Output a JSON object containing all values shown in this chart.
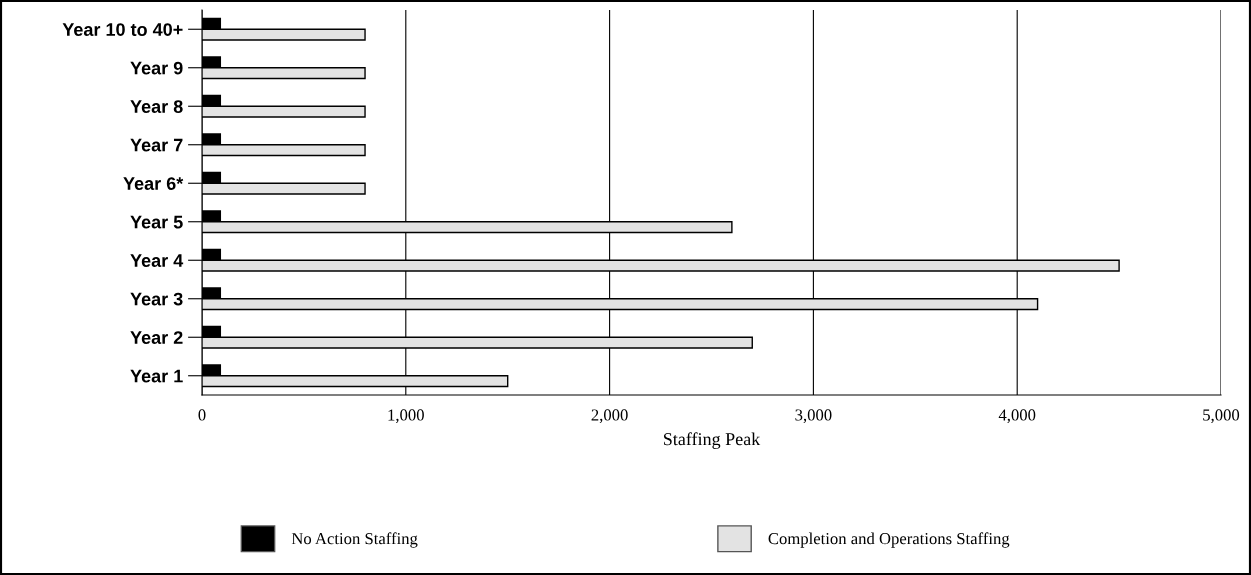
{
  "chart_data": {
    "type": "bar",
    "orientation": "horizontal",
    "xlabel": "Staffing Peak",
    "categories": [
      "Year 10 to 40+",
      "Year 9",
      "Year 8",
      "Year 7",
      "Year 6*",
      "Year 5",
      "Year 4",
      "Year 3",
      "Year 2",
      "Year 1"
    ],
    "series": [
      {
        "name": "No Action Staffing",
        "color": "#000000",
        "values": [
          90,
          90,
          90,
          90,
          90,
          90,
          90,
          90,
          90,
          90
        ]
      },
      {
        "name": "Completion and Operations Staffing",
        "color": "#e3e3e3",
        "values": [
          800,
          800,
          800,
          800,
          800,
          2600,
          4500,
          4100,
          2700,
          1500
        ]
      }
    ],
    "xlim": [
      0,
      5000
    ],
    "xticks": [
      {
        "value": 0,
        "label": "0"
      },
      {
        "value": 1000,
        "label": "1,000"
      },
      {
        "value": 2000,
        "label": "2,000"
      },
      {
        "value": 3000,
        "label": "3,000"
      },
      {
        "value": 4000,
        "label": "4,000"
      },
      {
        "value": 5000,
        "label": "5,000"
      }
    ],
    "grid": "x",
    "legend": "bottom"
  }
}
